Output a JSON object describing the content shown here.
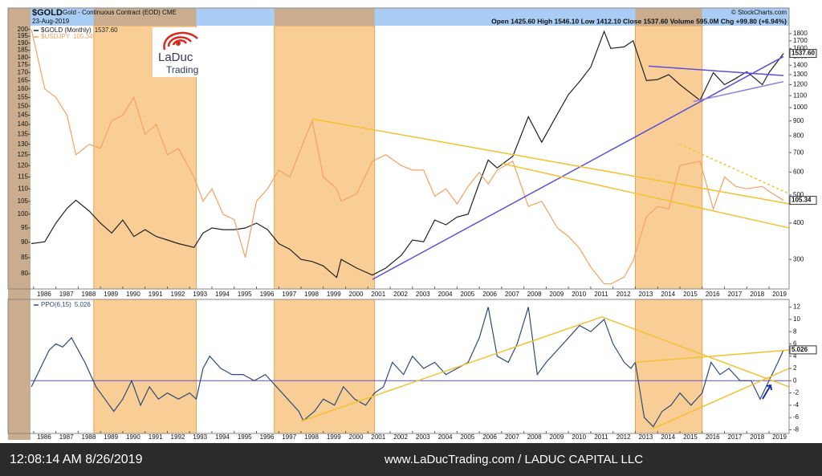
{
  "header": {
    "source": "© StockCharts.com"
  },
  "logo": {
    "name": "LaDuc",
    "tagline": "Trading"
  },
  "footer": {
    "time": "12:08:14 AM 8/26/2019",
    "site": "www.LaDucTrading.com / LADUC CAPITAL LLC"
  },
  "shaded_ranges": [
    [
      1988.7,
      1993.3
    ],
    [
      1996.8,
      2001.3
    ],
    [
      2013.0,
      2016.0
    ]
  ],
  "chart_data": [
    {
      "type": "line",
      "title": "$GOLD",
      "subtitle": "Gold - Continuous Contract (EOD) CME",
      "date": "23-Aug-2019",
      "quote": "Open 1425.60  High 1546.10  Low 1412.10  Close 1537.60  Volume 595.0M  Chg +99.80 (+6.94%)",
      "log_scale": true,
      "grid": false,
      "legend": "top-left",
      "yaxis_side": "left",
      "xlim": [
        1985.86,
        2019.9
      ],
      "xticks": [
        1986,
        1987,
        1988,
        1989,
        1990,
        1991,
        1992,
        1993,
        1994,
        1995,
        1996,
        1997,
        1998,
        1999,
        2000,
        2001,
        2002,
        2003,
        2004,
        2005,
        2006,
        2007,
        2008,
        2009,
        2010,
        2011,
        2012,
        2013,
        2014,
        2015,
        2016,
        2017,
        2018,
        2019
      ],
      "ylim": [
        76.7,
        201
      ],
      "yticks": [
        80,
        85,
        90,
        95,
        100,
        105,
        110,
        115,
        120,
        125,
        130,
        135,
        140,
        145,
        150,
        155,
        160,
        165,
        170,
        175,
        180,
        185,
        190,
        195,
        200
      ],
      "y2lim": [
        245,
        1880
      ],
      "y2ticks": [
        300,
        400,
        500,
        600,
        700,
        800,
        900,
        1000,
        1100,
        1200,
        1300,
        1400,
        1500,
        1600,
        1700,
        1800
      ],
      "x": [
        1985.9,
        1986.5,
        1987.0,
        1987.5,
        1987.9,
        1988.5,
        1989.0,
        1989.5,
        1990.0,
        1990.5,
        1991.0,
        1991.5,
        1992.0,
        1992.5,
        1993.2,
        1993.6,
        1994.0,
        1994.5,
        1995.0,
        1995.5,
        1996.0,
        1996.5,
        1997.0,
        1997.5,
        1998.0,
        1998.5,
        1999.0,
        1999.6,
        1999.8,
        2000.5,
        2001.2,
        2001.8,
        2002.5,
        2003.0,
        2003.5,
        2004.0,
        2004.5,
        2005.0,
        2005.5,
        2006.0,
        2006.4,
        2006.8,
        2007.5,
        2008.2,
        2008.8,
        2009.5,
        2010.0,
        2010.5,
        2011.0,
        2011.6,
        2011.9,
        2012.5,
        2012.9,
        2013.5,
        2014.0,
        2014.5,
        2015.0,
        2015.9,
        2016.5,
        2017.0,
        2017.5,
        2018.0,
        2018.7,
        2019.0,
        2019.65
      ],
      "series": [
        {
          "name": "$GOLD (Monthly)",
          "last_label": "1537.60",
          "color": "#222222",
          "axis": "y2",
          "values": [
            340,
            345,
            400,
            450,
            480,
            440,
            400,
            370,
            410,
            360,
            380,
            360,
            350,
            340,
            330,
            370,
            385,
            380,
            380,
            385,
            400,
            380,
            340,
            325,
            300,
            295,
            285,
            260,
            300,
            280,
            265,
            280,
            310,
            350,
            345,
            410,
            395,
            420,
            430,
            550,
            660,
            620,
            680,
            930,
            760,
            950,
            1110,
            1230,
            1380,
            1830,
            1600,
            1620,
            1700,
            1240,
            1250,
            1300,
            1200,
            1060,
            1320,
            1200,
            1260,
            1330,
            1200,
            1320,
            1537.6
          ]
        },
        {
          "name": "$USDJPY",
          "last_label": "105.34",
          "color": "#f5a060",
          "axis": "y",
          "values": [
            200,
            160,
            155,
            145,
            125,
            130,
            128,
            142,
            145,
            155,
            135,
            140,
            125,
            128,
            115,
            105,
            110,
            100,
            98,
            85,
            105,
            110,
            118,
            115,
            128,
            142,
            115,
            110,
            105,
            108,
            122,
            125,
            120,
            118,
            118,
            107,
            110,
            104,
            111,
            117,
            112,
            118,
            122,
            103,
            105,
            95,
            92,
            88,
            82,
            77,
            77,
            79,
            84,
            99,
            103,
            102,
            120,
            122,
            102,
            115,
            111,
            110,
            111,
            109,
            105.34
          ]
        }
      ],
      "trendlines": [
        {
          "color": "#5b4fd8",
          "axis": "y2",
          "dashed": false,
          "x": [
            2001.2,
            2019.65
          ],
          "values": [
            256,
            1500
          ]
        },
        {
          "color": "#5b4fd8",
          "axis": "y2",
          "dashed": false,
          "x": [
            2013.6,
            2019.65
          ],
          "values": [
            1390,
            1290
          ]
        },
        {
          "color": "#8a80e0",
          "axis": "y2",
          "dashed": false,
          "x": [
            2015.6,
            2019.65
          ],
          "values": [
            1050,
            1230
          ]
        },
        {
          "color": "#f2c12e",
          "axis": "y",
          "dashed": false,
          "x": [
            1998.5,
            2019.9
          ],
          "values": [
            143,
            104
          ]
        },
        {
          "color": "#f2c12e",
          "axis": "y",
          "dashed": false,
          "x": [
            2007.0,
            2019.9
          ],
          "values": [
            121,
            95
          ]
        },
        {
          "color": "#f2c12e",
          "axis": "y",
          "dashed": true,
          "x": [
            2015.0,
            2019.9
          ],
          "values": [
            130,
            108
          ]
        }
      ]
    },
    {
      "type": "line",
      "log_scale": false,
      "grid": false,
      "legend": "top-left",
      "yaxis_side": "right",
      "xlim": [
        1985.86,
        2019.9
      ],
      "xticks": [
        1986,
        1987,
        1988,
        1989,
        1990,
        1991,
        1992,
        1993,
        1994,
        1995,
        1996,
        1997,
        1998,
        1999,
        2000,
        2001,
        2002,
        2003,
        2004,
        2005,
        2006,
        2007,
        2008,
        2009,
        2010,
        2011,
        2012,
        2013,
        2014,
        2015,
        2016,
        2017,
        2018,
        2019
      ],
      "ylim": [
        -8.6,
        12.6
      ],
      "yticks": [
        -8,
        -6,
        -4,
        -2,
        0,
        2,
        4,
        6,
        8,
        10,
        12
      ],
      "hline": 0,
      "x": [
        1985.9,
        1986.3,
        1986.7,
        1987.0,
        1987.3,
        1987.7,
        1988.0,
        1988.3,
        1988.8,
        1989.2,
        1989.6,
        1990.0,
        1990.4,
        1990.8,
        1991.2,
        1991.6,
        1992.0,
        1992.5,
        1993.0,
        1993.3,
        1993.6,
        1993.9,
        1994.4,
        1994.9,
        1995.4,
        1995.9,
        1996.4,
        1996.9,
        1997.4,
        1997.9,
        1998.1,
        1998.6,
        1999.0,
        1999.5,
        1999.9,
        2000.4,
        2000.9,
        2001.3,
        2001.7,
        2002.1,
        2002.6,
        2003.0,
        2003.5,
        2004.0,
        2004.5,
        2005.0,
        2005.5,
        2006.0,
        2006.4,
        2006.8,
        2007.3,
        2007.7,
        2008.2,
        2008.6,
        2009.0,
        2009.5,
        2010.0,
        2010.5,
        2011.0,
        2011.6,
        2012.0,
        2012.5,
        2012.8,
        2013.0,
        2013.4,
        2013.8,
        2014.2,
        2014.6,
        2015.0,
        2015.5,
        2016.0,
        2016.4,
        2016.8,
        2017.2,
        2017.7,
        2018.2,
        2018.6,
        2019.0,
        2019.4,
        2019.65
      ],
      "series": [
        {
          "name": "PPO(6,15)",
          "last_label": "5.026",
          "color": "#2e4a78",
          "axis": "y",
          "values": [
            -1,
            2,
            5,
            6,
            5.5,
            7,
            5,
            3,
            -1,
            -3,
            -5,
            -3,
            0,
            -4,
            -1,
            -3,
            -2,
            -3,
            -2,
            -3,
            2,
            4,
            2,
            1,
            1,
            0,
            1,
            -1,
            -3,
            -5,
            -6.5,
            -5,
            -3,
            -4,
            -1,
            -3,
            -4,
            -2,
            -1,
            3,
            1,
            4,
            2,
            3,
            1,
            2,
            3,
            7,
            12,
            4,
            3,
            6,
            12,
            1,
            3,
            5,
            7,
            9,
            8,
            10,
            6,
            3,
            2,
            3,
            -6,
            -7.5,
            -5,
            -4,
            -2,
            -4,
            -2,
            3,
            1,
            2,
            0,
            0,
            -3,
            0,
            3,
            5.026
          ]
        }
      ],
      "trendlines": [
        {
          "color": "#f2c12e",
          "axis": "y",
          "dashed": false,
          "x": [
            1998.0,
            2011.5
          ],
          "values": [
            -6.6,
            10.4
          ]
        },
        {
          "color": "#f2c12e",
          "axis": "y",
          "dashed": false,
          "x": [
            2011.5,
            2019.9
          ],
          "values": [
            10.4,
            -1
          ]
        },
        {
          "color": "#f2c12e",
          "axis": "y",
          "dashed": false,
          "x": [
            2013.0,
            2019.9
          ],
          "values": [
            3,
            5
          ]
        },
        {
          "color": "#f2c12e",
          "axis": "y",
          "dashed": false,
          "x": [
            2013.8,
            2019.9
          ],
          "values": [
            -7.8,
            2
          ]
        }
      ]
    }
  ]
}
